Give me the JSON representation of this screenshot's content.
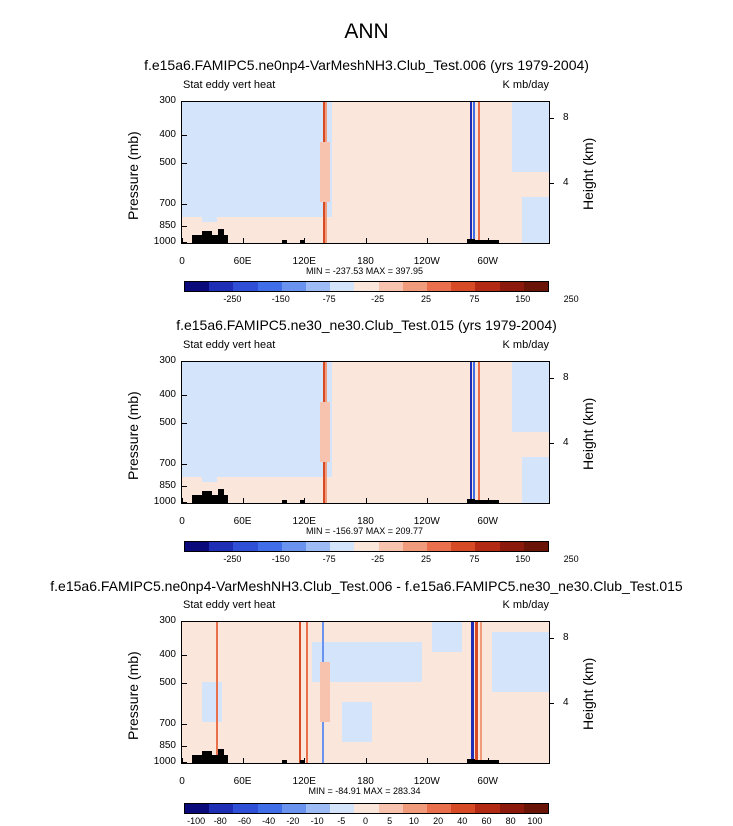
{
  "main_title": "ANN",
  "colors": {
    "palette": [
      "#0a0a7a",
      "#1f2fb5",
      "#2f4fd6",
      "#3f6ee8",
      "#6a93f0",
      "#9dbcf6",
      "#d4e4fb",
      "#fbe6dc",
      "#f7c3ae",
      "#f19b7d",
      "#e96f4d",
      "#d64a26",
      "#b22a14",
      "#8c1a0c",
      "#6a1408"
    ],
    "land": "#000000"
  },
  "chart_data": [
    {
      "type": "heatmap",
      "title": "f.e15a6.FAMIPC5.ne0np4-VarMeshNH3.Club_Test.006 (yrs 1979-2004)",
      "left_label": "Stat eddy vert heat",
      "right_label": "K mb/day",
      "ylabel": "Pressure (mb)",
      "y2label": "Height (km)",
      "x_ticks": [
        "0",
        "60E",
        "120E",
        "180",
        "120W",
        "60W"
      ],
      "y_ticks": [
        "300",
        "400",
        "500",
        "700",
        "850",
        "1000"
      ],
      "y2_ticks": [
        "8",
        "4"
      ],
      "min_label": "MIN = -237.53",
      "max_label": "MAX = 397.95",
      "colorbar_labels": [
        "-250",
        "-150",
        "-75",
        "-25",
        "25",
        "75",
        "150",
        "250"
      ]
    },
    {
      "type": "heatmap",
      "title": "f.e15a6.FAMIPC5.ne30_ne30.Club_Test.015 (yrs 1979-2004)",
      "left_label": "Stat eddy vert heat",
      "right_label": "K mb/day",
      "ylabel": "Pressure (mb)",
      "y2label": "Height (km)",
      "x_ticks": [
        "0",
        "60E",
        "120E",
        "180",
        "120W",
        "60W"
      ],
      "y_ticks": [
        "300",
        "400",
        "500",
        "700",
        "850",
        "1000"
      ],
      "y2_ticks": [
        "8",
        "4"
      ],
      "min_label": "MIN = -156.97",
      "max_label": "MAX = 209.77",
      "colorbar_labels": [
        "-250",
        "-150",
        "-75",
        "-25",
        "25",
        "75",
        "150",
        "250"
      ]
    },
    {
      "type": "heatmap",
      "title": "f.e15a6.FAMIPC5.ne0np4-VarMeshNH3.Club_Test.006 - f.e15a6.FAMIPC5.ne30_ne30.Club_Test.015",
      "left_label": "Stat eddy vert heat",
      "right_label": "K mb/day",
      "ylabel": "Pressure (mb)",
      "y2label": "Height (km)",
      "x_ticks": [
        "0",
        "60E",
        "120E",
        "180",
        "120W",
        "60W"
      ],
      "y_ticks": [
        "300",
        "400",
        "500",
        "700",
        "850",
        "1000"
      ],
      "y2_ticks": [
        "8",
        "4"
      ],
      "min_label": "MIN = -84.91",
      "max_label": "MAX = 283.34",
      "colorbar_labels": [
        "-100",
        "-80",
        "-60",
        "-40",
        "-20",
        "-10",
        "-5",
        "0",
        "5",
        "10",
        "20",
        "40",
        "60",
        "80",
        "100"
      ]
    }
  ]
}
